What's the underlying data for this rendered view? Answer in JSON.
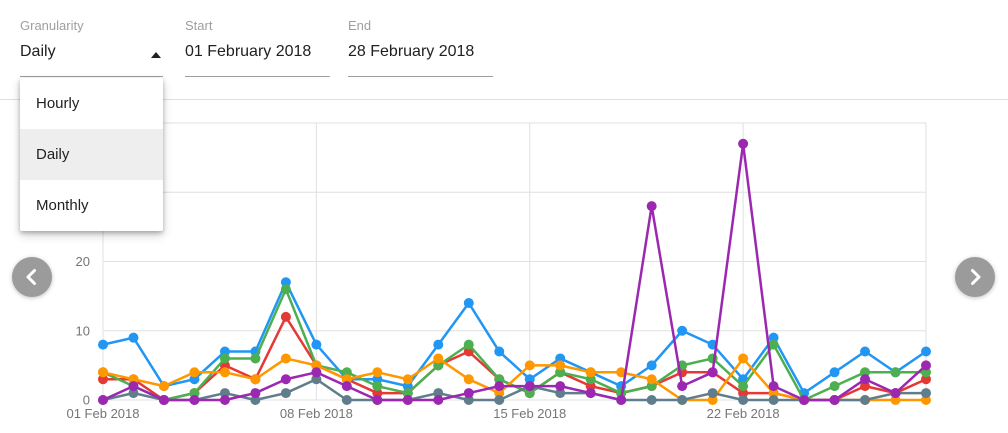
{
  "controls": {
    "granularity": {
      "label": "Granularity",
      "value": "Daily",
      "options": [
        "Hourly",
        "Daily",
        "Monthly"
      ],
      "selected_index": 1,
      "caret_icon": "caret-up"
    },
    "start": {
      "label": "Start",
      "value": "01 February 2018"
    },
    "end": {
      "label": "End",
      "value": "28 February 2018"
    }
  },
  "nav": {
    "prev_icon": "chevron-left",
    "next_icon": "chevron-right"
  },
  "colors": {
    "blue": "#2196F3",
    "orange": "#FF9800",
    "red": "#E53935",
    "green": "#4CAF50",
    "purple": "#9C27B0",
    "gray": "#607D8B",
    "gridline": "#e0e0e0",
    "axis_text": "#757575"
  },
  "chart_data": {
    "type": "line",
    "title": "",
    "xlabel": "",
    "ylabel": "",
    "grid": true,
    "legend": "none",
    "ylim": [
      0,
      40
    ],
    "y_ticks": [
      0,
      10,
      20
    ],
    "days": [
      1,
      2,
      3,
      4,
      5,
      6,
      7,
      8,
      9,
      10,
      11,
      12,
      13,
      14,
      15,
      16,
      17,
      18,
      19,
      20,
      21,
      22,
      23,
      24,
      25,
      26,
      27,
      28
    ],
    "x_tick_labels": [
      "01 Feb 2018",
      "08 Feb 2018",
      "15 Feb 2018",
      "22 Feb 2018"
    ],
    "x_tick_day_indices": [
      0,
      7,
      14,
      21
    ],
    "x_gridline_day_indices": [
      0,
      7,
      14,
      21,
      27
    ],
    "series": [
      {
        "name": "blue",
        "color": "#2196F3",
        "values": [
          8,
          9,
          2,
          3,
          7,
          7,
          17,
          8,
          3,
          3,
          2,
          8,
          14,
          7,
          3,
          6,
          4,
          2,
          5,
          10,
          8,
          3,
          9,
          1,
          4,
          7,
          4,
          7
        ]
      },
      {
        "name": "red",
        "color": "#E53935",
        "values": [
          3,
          3,
          0,
          1,
          5,
          3,
          12,
          5,
          3,
          1,
          1,
          5,
          7,
          3,
          1,
          4,
          2,
          1,
          2,
          4,
          4,
          1,
          1,
          0,
          0,
          2,
          1,
          3
        ]
      },
      {
        "name": "green",
        "color": "#4CAF50",
        "values": [
          4,
          2,
          0,
          1,
          6,
          6,
          16,
          5,
          4,
          2,
          1,
          5,
          8,
          3,
          1,
          4,
          3,
          1,
          2,
          5,
          6,
          2,
          8,
          0,
          2,
          4,
          4,
          4
        ]
      },
      {
        "name": "orange",
        "color": "#FF9800",
        "values": [
          4,
          3,
          2,
          4,
          4,
          3,
          6,
          5,
          3,
          4,
          3,
          6,
          3,
          1,
          5,
          5,
          4,
          4,
          3,
          0,
          0,
          6,
          1,
          0,
          0,
          0,
          0,
          0
        ]
      },
      {
        "name": "gray",
        "color": "#607D8B",
        "values": [
          0,
          1,
          0,
          0,
          1,
          0,
          1,
          3,
          0,
          0,
          0,
          1,
          0,
          0,
          2,
          1,
          1,
          0,
          0,
          0,
          1,
          0,
          0,
          0,
          0,
          0,
          1,
          1
        ]
      },
      {
        "name": "purple",
        "color": "#9C27B0",
        "values": [
          0,
          2,
          0,
          0,
          0,
          1,
          3,
          4,
          2,
          0,
          0,
          0,
          1,
          2,
          2,
          2,
          1,
          0,
          28,
          2,
          4,
          37,
          2,
          0,
          0,
          3,
          1,
          5
        ]
      }
    ]
  }
}
